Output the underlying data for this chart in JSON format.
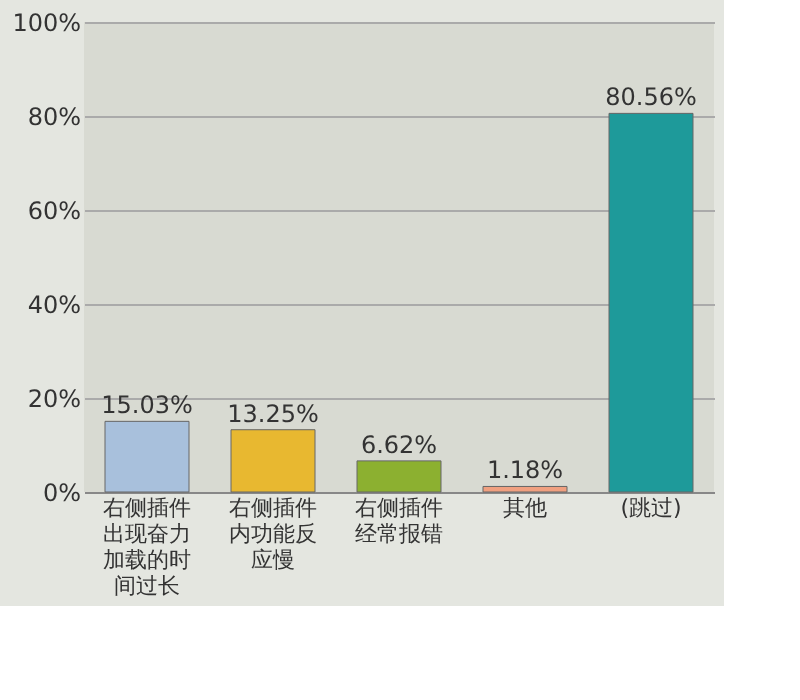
{
  "chart_data": {
    "type": "bar",
    "categories": [
      "右侧插件出现奋力加载的时间过长",
      "右侧插件内功能反应慢",
      "右侧插件经常报错",
      "其他",
      "(跳过)"
    ],
    "values": [
      15.03,
      13.25,
      6.62,
      1.18,
      80.56
    ],
    "value_labels": [
      "15.03%",
      "13.25%",
      "6.62%",
      "1.18%",
      "80.56%"
    ],
    "colors": [
      "#a8c0dc",
      "#e8b830",
      "#8cb030",
      "#f0a080",
      "#1e9a9a"
    ],
    "ylim": [
      0,
      100
    ],
    "yticks": [
      {
        "value": 0,
        "label": "0%"
      },
      {
        "value": 20,
        "label": "20%"
      },
      {
        "value": 40,
        "label": "40%"
      },
      {
        "value": 60,
        "label": "60%"
      },
      {
        "value": 80,
        "label": "80%"
      },
      {
        "value": 100,
        "label": "100%"
      }
    ],
    "grid": "y"
  }
}
